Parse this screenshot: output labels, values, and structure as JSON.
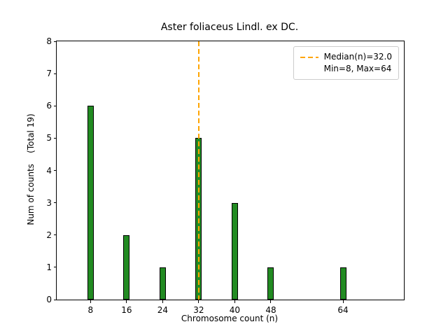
{
  "chart_data": {
    "type": "bar",
    "title": "Aster foliaceus Lindl. ex DC.",
    "xlabel": "Chromosome count (n)",
    "ylabel": "Num of counts    (Total 19)",
    "categories": [
      8,
      16,
      24,
      32,
      40,
      48,
      64
    ],
    "values": [
      6,
      2,
      1,
      5,
      3,
      1,
      1
    ],
    "total_counts": 19,
    "xticks": [
      8,
      16,
      24,
      32,
      40,
      48,
      64
    ],
    "yticks": [
      0,
      1,
      2,
      3,
      4,
      5,
      6,
      7,
      8
    ],
    "xlim": [
      0.5,
      77.5
    ],
    "ylim": [
      0,
      8
    ],
    "grid": false,
    "bar_color": "#228B22",
    "bar_edge_color": "#000000",
    "bar_width_data_units": 1.4,
    "median_line": {
      "x": 32,
      "value": 32.0,
      "color": "#FFA500",
      "style": "dashed"
    },
    "legend": {
      "position": "upper-right",
      "entries": [
        {
          "label": "Median(n)=32.0",
          "marker": "dashed-line",
          "color": "#FFA500"
        },
        {
          "label": "Min=8, Max=64",
          "marker": "none"
        }
      ]
    }
  }
}
